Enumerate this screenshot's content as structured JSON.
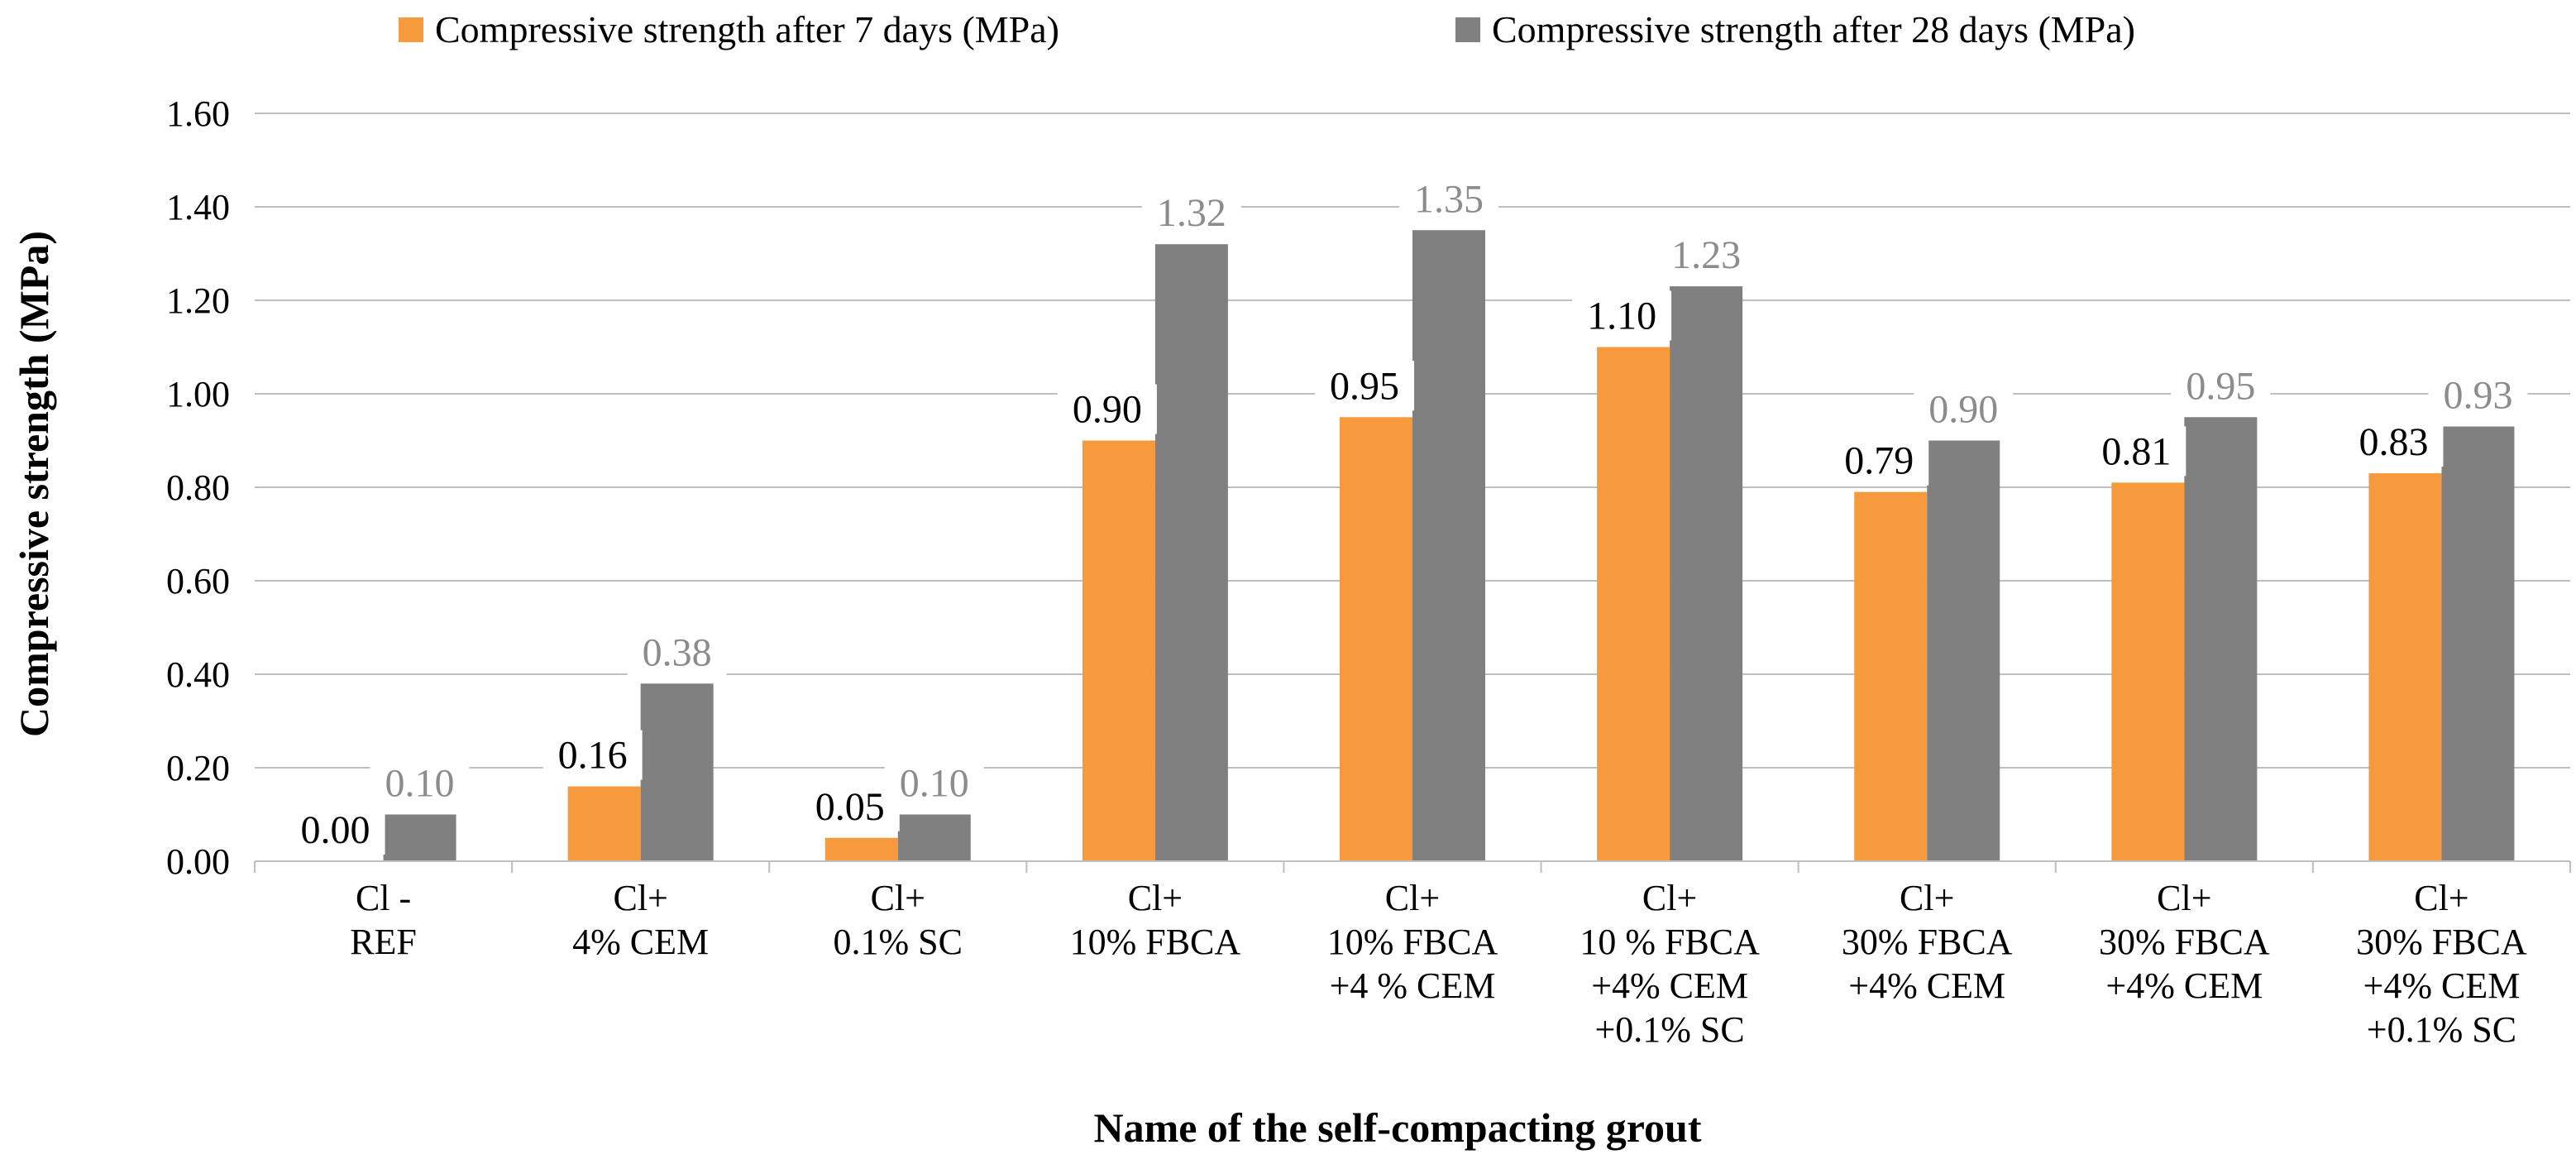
{
  "chart_data": {
    "type": "bar",
    "title": "",
    "xlabel": "Name of the self-compacting grout",
    "ylabel": "Compressive strength (MPa)",
    "ylim": [
      0,
      1.6
    ],
    "yticks": [
      "0.00",
      "0.20",
      "0.40",
      "0.60",
      "0.80",
      "1.00",
      "1.20",
      "1.40",
      "1.60"
    ],
    "grid": true,
    "legend_position": "top",
    "categories": [
      [
        "Cl -",
        "REF"
      ],
      [
        "Cl+",
        "4% CEM"
      ],
      [
        "Cl+",
        "0.1% SC"
      ],
      [
        "Cl+",
        "10% FBCA"
      ],
      [
        "Cl+",
        "10% FBCA",
        "+4 % CEM"
      ],
      [
        "Cl+",
        "10 % FBCA",
        "+4% CEM",
        "+0.1% SC"
      ],
      [
        "Cl+",
        "30% FBCA",
        "+4% CEM"
      ],
      [
        "Cl+",
        "30% FBCA",
        "+4% CEM"
      ],
      [
        "Cl+",
        "30% FBCA",
        "+4% CEM",
        "+0.1% SC"
      ]
    ],
    "series": [
      {
        "name": "Compressive strength after 7 days (MPa)",
        "color": "#f79a3e",
        "values": [
          0.0,
          0.16,
          0.05,
          0.9,
          0.95,
          1.1,
          0.79,
          0.81,
          0.83
        ],
        "labels": [
          "0.00",
          "0.16",
          "0.05",
          "0.90",
          "0.95",
          "1.10",
          "0.79",
          "0.81",
          "0.83"
        ]
      },
      {
        "name": "Compressive strength after 28 days (MPa)",
        "color": "#808080",
        "values": [
          0.1,
          0.38,
          0.1,
          1.32,
          1.35,
          1.23,
          0.9,
          0.95,
          0.93
        ],
        "labels": [
          "0.10",
          "0.38",
          "0.10",
          "1.32",
          "1.35",
          "1.23",
          "0.90",
          "0.95",
          "0.93"
        ]
      }
    ]
  }
}
